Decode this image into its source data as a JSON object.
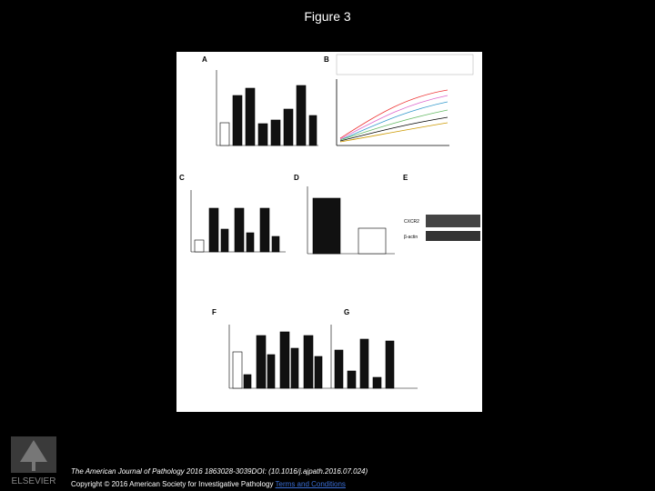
{
  "header": {
    "title": "Figure 3"
  },
  "figure": {
    "panels": [
      "A",
      "B",
      "C",
      "D",
      "E",
      "F",
      "G"
    ],
    "blot_labels": [
      "CXCR2",
      "β-actin"
    ]
  },
  "footer": {
    "citation": "The American Journal of Pathology 2016 1863028-3039DOI: (10.1016/j.ajpath.2016.07.024)",
    "copyright": "Copyright © 2016 American Society for Investigative Pathology",
    "link": "Terms and Conditions"
  },
  "logo": {
    "text": "ELSEVIER"
  }
}
